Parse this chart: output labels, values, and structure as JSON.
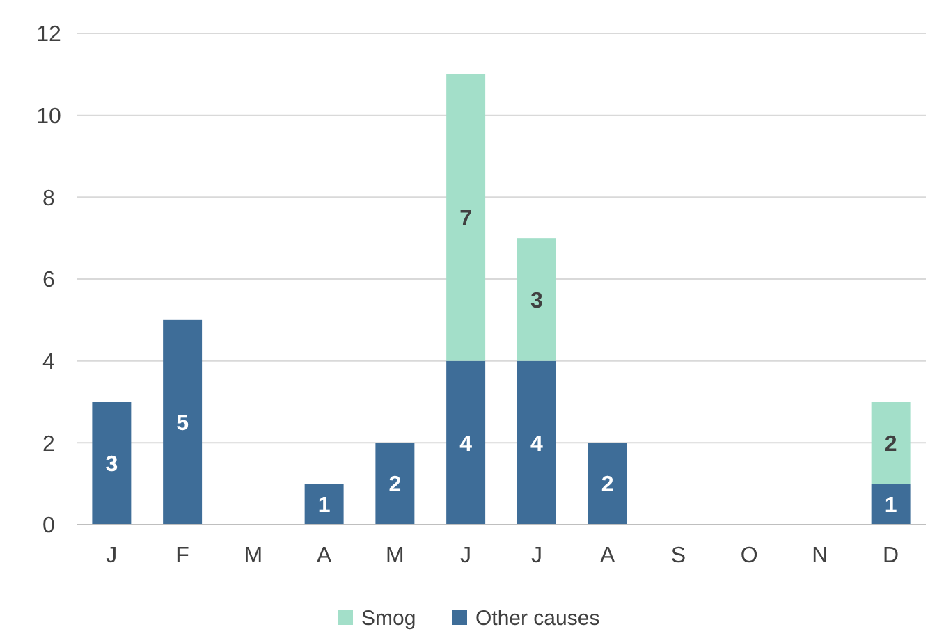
{
  "chart_data": {
    "type": "bar",
    "stacked": true,
    "categories": [
      "J",
      "F",
      "M",
      "A",
      "M",
      "J",
      "J",
      "A",
      "S",
      "O",
      "N",
      "D"
    ],
    "series": [
      {
        "name": "Other causes",
        "color": "#3e6d98",
        "values": [
          3,
          5,
          null,
          1,
          2,
          4,
          4,
          2,
          null,
          null,
          null,
          1
        ]
      },
      {
        "name": "Smog",
        "color": "#a3dfc9",
        "values": [
          null,
          null,
          null,
          null,
          null,
          7,
          3,
          null,
          null,
          null,
          null,
          2
        ]
      }
    ],
    "ylim": [
      0,
      12
    ],
    "yticks": [
      0,
      2,
      4,
      6,
      8,
      10,
      12
    ],
    "grid": "y",
    "legend": "bottom",
    "data_labels": true
  }
}
